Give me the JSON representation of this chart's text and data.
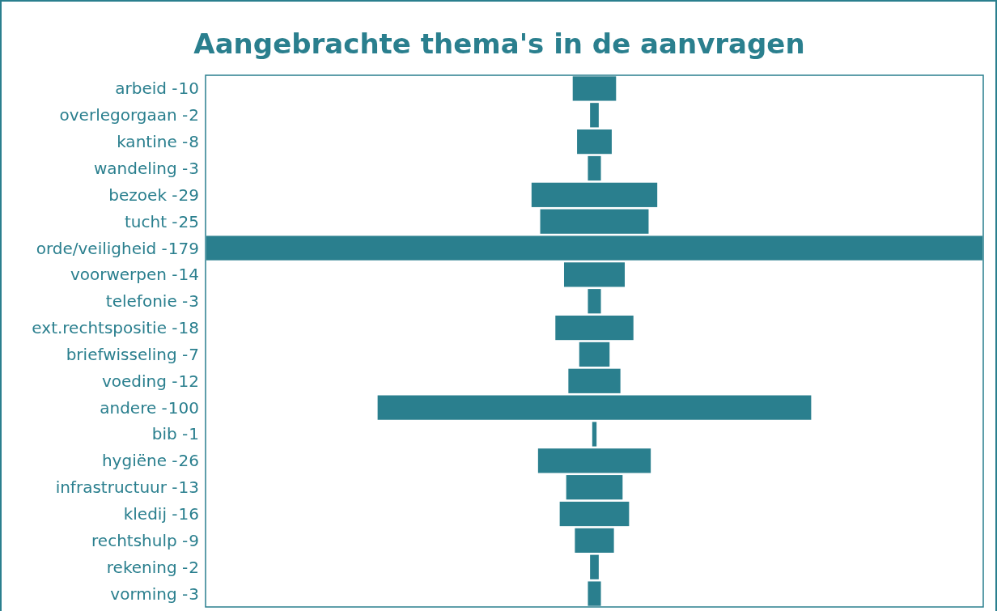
{
  "chart_data": {
    "type": "other",
    "title": "Aangebrachte thema's in de aanvragen",
    "color": "#2a7f8e",
    "categories": [
      "arbeid -",
      "overlegorgaan -",
      "kantine -",
      "wandeling -",
      "bezoek -",
      "tucht -",
      "orde/veiligheid -",
      "voorwerpen -",
      "telefonie -",
      "ext.rechtspositie -",
      "briefwisseling -",
      "voeding -",
      "andere -",
      "bib -",
      "hygiëne -",
      "infrastructuur -",
      "kledij -",
      "rechtshulp -",
      "rekening -",
      "vorming -"
    ],
    "values": [
      10,
      2,
      8,
      3,
      29,
      25,
      179,
      14,
      3,
      18,
      7,
      12,
      100,
      1,
      26,
      13,
      16,
      9,
      2,
      3
    ],
    "value_labels": [
      "10",
      "2",
      "8",
      "3",
      "29",
      "25",
      "179",
      "14",
      "3",
      "18",
      "7",
      "12",
      "100",
      "1",
      "26",
      "13",
      "16",
      "9",
      "2",
      "3"
    ]
  }
}
